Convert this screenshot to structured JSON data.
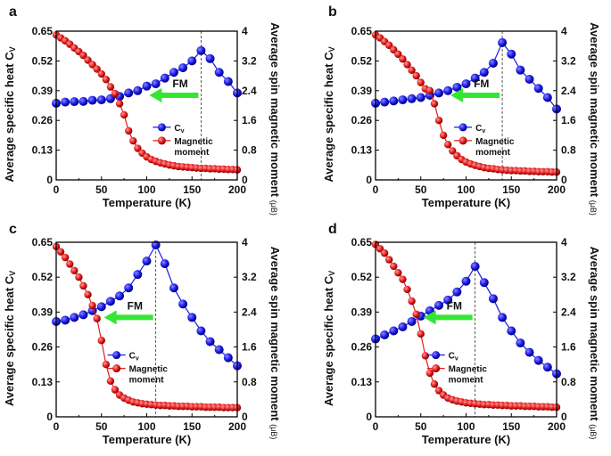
{
  "chart_data": [
    {
      "panel": "a",
      "type": "line",
      "xlabel": "Temperature (K)",
      "ylabel": "Average specific heat C",
      "ylabel_sub": "V",
      "y2label": "Average spin magnetic moment",
      "y2unit": "(μB)",
      "xlim": [
        0,
        200
      ],
      "ylim": [
        0,
        0.65
      ],
      "y2lim": [
        0,
        4
      ],
      "xticks": [
        "0",
        "50",
        "100",
        "150",
        "200"
      ],
      "yticks": [
        "0",
        "0.13",
        "0.26",
        "0.39",
        "0.52",
        "0.65"
      ],
      "y2ticks": [
        "0",
        "0.8",
        "1.6",
        "2.4",
        "3.2",
        "4"
      ],
      "annotation": "FM",
      "transition_temperature": 160,
      "legend": [
        "C",
        "Magnetic",
        "moment"
      ],
      "legend_sub": "v",
      "series": [
        {
          "name": "Cv",
          "axis": "left",
          "color": "#1a1ae6",
          "x_step": 10,
          "values": [
            0.335,
            0.34,
            0.342,
            0.343,
            0.348,
            0.35,
            0.355,
            0.365,
            0.38,
            0.39,
            0.41,
            0.42,
            0.445,
            0.47,
            0.49,
            0.52,
            0.565,
            0.53,
            0.47,
            0.43,
            0.38
          ]
        },
        {
          "name": "Magnetic moment",
          "axis": "right",
          "color": "#e61a1a",
          "x_step": 5,
          "values": [
            3.9,
            3.82,
            3.74,
            3.65,
            3.55,
            3.45,
            3.35,
            3.22,
            3.1,
            2.98,
            2.85,
            2.7,
            2.5,
            2.32,
            2.05,
            1.75,
            1.32,
            1.05,
            0.85,
            0.72,
            0.62,
            0.55,
            0.5,
            0.46,
            0.43,
            0.4,
            0.38,
            0.36,
            0.35,
            0.34,
            0.33,
            0.32,
            0.31,
            0.31,
            0.3,
            0.3,
            0.29,
            0.29,
            0.28,
            0.28,
            0.27
          ]
        }
      ]
    },
    {
      "panel": "b",
      "type": "line",
      "xlabel": "Temperature (K)",
      "ylabel": "Average specific heat C",
      "ylabel_sub": "V",
      "y2label": "Average spin magnetic moment",
      "y2unit": "(μB)",
      "xlim": [
        0,
        200
      ],
      "ylim": [
        0,
        0.65
      ],
      "y2lim": [
        0,
        4
      ],
      "xticks": [
        "0",
        "50",
        "100",
        "150",
        "200"
      ],
      "yticks": [
        "0",
        "0.13",
        "0.26",
        "0.39",
        "0.52",
        "0.65"
      ],
      "y2ticks": [
        "0",
        "0.8",
        "1.6",
        "2.4",
        "3.2",
        "4"
      ],
      "annotation": "FM",
      "transition_temperature": 140,
      "legend": [
        "C",
        "Magnetic",
        "moment"
      ],
      "legend_sub": "v",
      "series": [
        {
          "name": "Cv",
          "axis": "left",
          "color": "#1a1ae6",
          "x_step": 10,
          "values": [
            0.335,
            0.34,
            0.345,
            0.35,
            0.355,
            0.36,
            0.37,
            0.38,
            0.39,
            0.405,
            0.42,
            0.445,
            0.47,
            0.51,
            0.6,
            0.55,
            0.48,
            0.44,
            0.4,
            0.36,
            0.31
          ]
        },
        {
          "name": "Magnetic moment",
          "axis": "right",
          "color": "#e61a1a",
          "x_step": 5,
          "values": [
            3.9,
            3.82,
            3.72,
            3.62,
            3.5,
            3.38,
            3.25,
            3.1,
            2.95,
            2.8,
            2.62,
            2.45,
            2.4,
            2.05,
            1.6,
            1.2,
            0.95,
            0.78,
            0.65,
            0.55,
            0.48,
            0.43,
            0.39,
            0.36,
            0.33,
            0.31,
            0.3,
            0.28,
            0.27,
            0.26,
            0.25,
            0.25,
            0.24,
            0.24,
            0.23,
            0.23,
            0.22,
            0.22,
            0.22,
            0.21,
            0.21
          ]
        }
      ]
    },
    {
      "panel": "c",
      "type": "line",
      "xlabel": "Temperature (K)",
      "ylabel": "Average specific heat C",
      "ylabel_sub": "V",
      "y2label": "Average spin magnetic moment",
      "y2unit": "(μB)",
      "xlim": [
        0,
        200
      ],
      "ylim": [
        0,
        0.65
      ],
      "y2lim": [
        0,
        4
      ],
      "xticks": [
        "0",
        "50",
        "100",
        "150",
        "200"
      ],
      "yticks": [
        "0",
        "0.13",
        "0.26",
        "0.39",
        "0.52",
        "0.65"
      ],
      "y2ticks": [
        "0",
        "0.8",
        "1.6",
        "2.4",
        "3.2",
        "4"
      ],
      "annotation": "FM",
      "transition_temperature": 110,
      "legend": [
        "C",
        "Magnetic",
        "moment"
      ],
      "legend_sub": "v",
      "series": [
        {
          "name": "Cv",
          "axis": "left",
          "color": "#1a1ae6",
          "x_step": 10,
          "values": [
            0.355,
            0.36,
            0.37,
            0.38,
            0.395,
            0.41,
            0.43,
            0.45,
            0.48,
            0.53,
            0.58,
            0.64,
            0.57,
            0.48,
            0.42,
            0.37,
            0.32,
            0.28,
            0.25,
            0.22,
            0.19
          ]
        },
        {
          "name": "Magnetic moment",
          "axis": "right",
          "color": "#e61a1a",
          "x_step": 5,
          "values": [
            3.9,
            3.78,
            3.65,
            3.5,
            3.35,
            3.2,
            3.0,
            2.8,
            2.55,
            2.25,
            1.75,
            1.2,
            0.82,
            0.62,
            0.5,
            0.43,
            0.38,
            0.34,
            0.32,
            0.3,
            0.29,
            0.28,
            0.27,
            0.26,
            0.26,
            0.25,
            0.25,
            0.24,
            0.24,
            0.24,
            0.23,
            0.23,
            0.23,
            0.22,
            0.22,
            0.22,
            0.22,
            0.21,
            0.21,
            0.21,
            0.21
          ]
        }
      ]
    },
    {
      "panel": "d",
      "type": "line",
      "xlabel": "Temperature (K)",
      "ylabel": "Average specific heat C",
      "ylabel_sub": "V",
      "y2label": "Average spin magnetic moment",
      "y2unit": "(μB)",
      "xlim": [
        0,
        200
      ],
      "ylim": [
        0,
        0.65
      ],
      "y2lim": [
        0,
        4
      ],
      "xticks": [
        "0",
        "50",
        "100",
        "150",
        "200"
      ],
      "yticks": [
        "0",
        "0.13",
        "0.26",
        "0.39",
        "0.52",
        "0.65"
      ],
      "y2ticks": [
        "0",
        "0.8",
        "1.6",
        "2.4",
        "3.2",
        "4"
      ],
      "annotation": "FM",
      "transition_temperature": 110,
      "legend": [
        "C",
        "Magnetic",
        "moment"
      ],
      "legend_sub": "v",
      "series": [
        {
          "name": "Cv",
          "axis": "left",
          "color": "#1a1ae6",
          "x_step": 10,
          "values": [
            0.29,
            0.305,
            0.32,
            0.335,
            0.355,
            0.375,
            0.395,
            0.415,
            0.435,
            0.465,
            0.505,
            0.56,
            0.5,
            0.44,
            0.37,
            0.32,
            0.275,
            0.24,
            0.21,
            0.185,
            0.16
          ]
        },
        {
          "name": "Magnetic moment",
          "axis": "right",
          "color": "#e61a1a",
          "x_step": 5,
          "values": [
            3.95,
            3.85,
            3.75,
            3.6,
            3.45,
            3.3,
            3.15,
            2.92,
            2.65,
            2.35,
            1.9,
            1.4,
            1.0,
            0.75,
            0.6,
            0.5,
            0.43,
            0.39,
            0.36,
            0.34,
            0.32,
            0.31,
            0.3,
            0.29,
            0.28,
            0.28,
            0.27,
            0.27,
            0.26,
            0.26,
            0.25,
            0.25,
            0.25,
            0.24,
            0.24,
            0.24,
            0.23,
            0.23,
            0.23,
            0.22,
            0.22
          ]
        }
      ]
    }
  ],
  "colors": {
    "cv": "#1a1ae6",
    "magnetic": "#e61a1a",
    "arrow": "#33e633"
  }
}
